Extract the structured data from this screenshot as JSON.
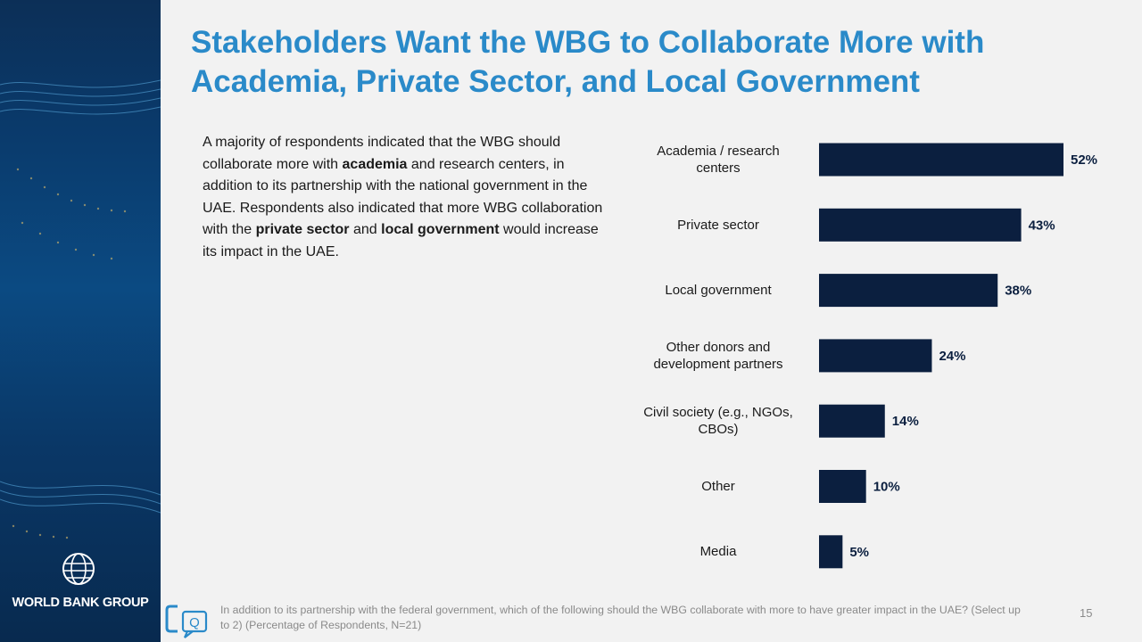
{
  "brand": "WORLD BANK GROUP",
  "title": "Stakeholders Want the WBG to Collaborate More with Academia, Private Sector, and Local Government",
  "body": {
    "s1": "A majority of respondents indicated that the WBG should collaborate more with ",
    "b1": "academia",
    "s2": " and research centers, in addition to its partnership with the national government in the UAE. Respondents also indicated that more WBG collaboration with the ",
    "b2": "private sector",
    "s3": " and ",
    "b3": "local government",
    "s4": " would increase its impact in the UAE."
  },
  "chart_data": {
    "type": "bar",
    "orientation": "horizontal",
    "categories": [
      [
        "Academia / research",
        "centers"
      ],
      [
        "Private sector"
      ],
      [
        "Local government"
      ],
      [
        "Other donors and",
        "development partners"
      ],
      [
        "Civil society (e.g., NGOs,",
        "CBOs)"
      ],
      [
        "Other"
      ],
      [
        "Media"
      ]
    ],
    "values": [
      52,
      43,
      38,
      24,
      14,
      10,
      5
    ],
    "value_labels": [
      "52%",
      "43%",
      "38%",
      "24%",
      "14%",
      "10%",
      "5%"
    ],
    "unit": "%",
    "bar_color": "#0b1f3f",
    "xlim": [
      0,
      52
    ],
    "grid": false,
    "legend": "none"
  },
  "footnote": "In addition to its partnership with the federal government, which of the following should the WBG collaborate with more to have greater impact in the UAE?  (Select up to 2) (Percentage of Respondents, N=21)",
  "footer_icon_letter": "Q",
  "page_number": "15",
  "colors": {
    "title": "#2a8ac9",
    "sidebar": "#0a3a6b",
    "bars": "#0b1f3f"
  }
}
